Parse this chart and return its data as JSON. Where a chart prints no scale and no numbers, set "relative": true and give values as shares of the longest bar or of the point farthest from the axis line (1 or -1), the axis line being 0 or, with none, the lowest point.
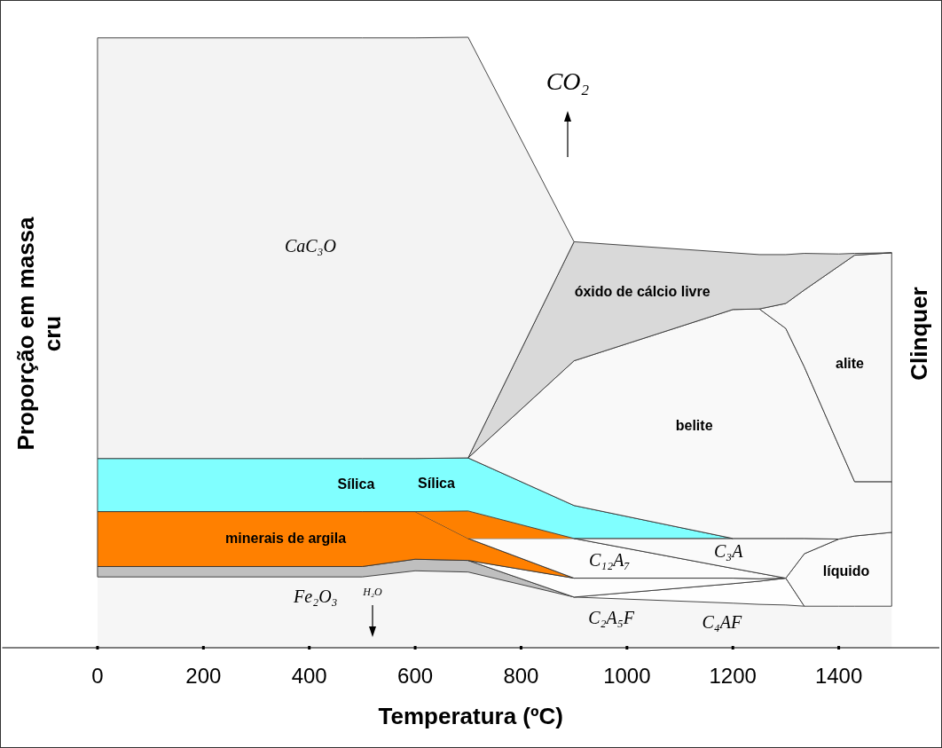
{
  "chart_data": {
    "type": "area",
    "stacked": true,
    "relative": true,
    "xlabel": "Temperatura (ºC)",
    "ylabel": "Proporção em massa cru",
    "y2label": "Clinquer",
    "x": [
      0,
      500,
      600,
      700,
      900,
      1200,
      1250,
      1300,
      1335,
      1400,
      1430,
      1500
    ],
    "xlim": [
      -180,
      1590
    ],
    "xticks": [
      0,
      200,
      400,
      600,
      800,
      1000,
      1200,
      1400
    ],
    "grid": false,
    "legend": false,
    "series": [
      {
        "color": "#f6f6f6",
        "values": [
          0.116,
          0.116,
          0.126,
          0.124,
          0.083,
          0.073,
          0.071,
          0.07,
          0.068,
          0.068,
          0.068,
          0.068
        ]
      },
      {
        "name": "C₄AF",
        "color": "#fefefe",
        "values": [
          null,
          null,
          null,
          null,
          0,
          0.032,
          0.038,
          0.044,
          0,
          null,
          null,
          null
        ]
      },
      {
        "name": "Fe₂O₃",
        "color": "#bfbfbf",
        "values": [
          0.017,
          0.017,
          0.019,
          0.019,
          0,
          null,
          null,
          null,
          null,
          null,
          null,
          null
        ]
      },
      {
        "name": "C₂A₅F",
        "color": "#fdfdfd",
        "values": [
          null,
          null,
          null,
          0,
          0.031,
          0.009,
          0.004,
          0,
          null,
          null,
          null,
          null
        ]
      },
      {
        "name": "minerais de argila",
        "color": "#ff8000",
        "values": [
          0.09,
          0.09,
          0.078,
          0.036,
          0,
          null,
          null,
          null,
          null,
          null,
          null,
          null
        ]
      },
      {
        "name": "C₁₂A₇",
        "color": "#fcfcfc",
        "values": [
          null,
          null,
          null,
          0,
          0.065,
          0.016,
          0.009,
          0,
          null,
          null,
          null,
          null
        ]
      },
      {
        "name": "líquido",
        "color": "#fbfbfb",
        "values": [
          null,
          null,
          null,
          null,
          null,
          null,
          null,
          0,
          0.086,
          0.11,
          0.115,
          0.121
        ]
      },
      {
        "name": "C₃A",
        "color": "#fafafa",
        "values": [
          null,
          null,
          null,
          null,
          0,
          0.049,
          0.057,
          0.065,
          0.025,
          0,
          null,
          null
        ]
      },
      {
        "color": "#fe8000",
        "values": [
          null,
          null,
          0,
          0.045,
          0,
          null,
          null,
          null,
          null,
          null,
          null,
          null
        ]
      },
      {
        "name": "Sílica",
        "color": "#80ffff",
        "values": [
          0.087,
          0.087,
          0.087,
          0.087,
          0.054,
          0,
          null,
          null,
          null,
          null,
          null,
          null
        ]
      },
      {
        "name": "belite",
        "color": "#f9f9f9",
        "values": [
          null,
          null,
          null,
          0,
          0.237,
          0.375,
          0.376,
          0.344,
          0.281,
          0.153,
          0.089,
          0.083
        ]
      },
      {
        "name": "alite",
        "color": "#f8f8f8",
        "values": [
          null,
          null,
          null,
          null,
          null,
          null,
          0,
          0.041,
          0.126,
          0.294,
          0.371,
          0.375
        ]
      },
      {
        "name": "óxido de cálcio livre",
        "color": "#d9d9d9",
        "values": [
          null,
          null,
          null,
          0,
          0.195,
          0.093,
          0.089,
          0.08,
          0.06,
          0.02,
          0.003,
          0
        ]
      },
      {
        "name": "CaC₃O",
        "color": "#f3f3f3",
        "values": [
          0.689,
          0.689,
          0.689,
          0.689,
          0,
          null,
          null,
          null,
          null,
          null,
          null,
          null
        ]
      }
    ],
    "annotations": [
      "Sílica",
      "CO₂",
      "H₂O"
    ]
  }
}
